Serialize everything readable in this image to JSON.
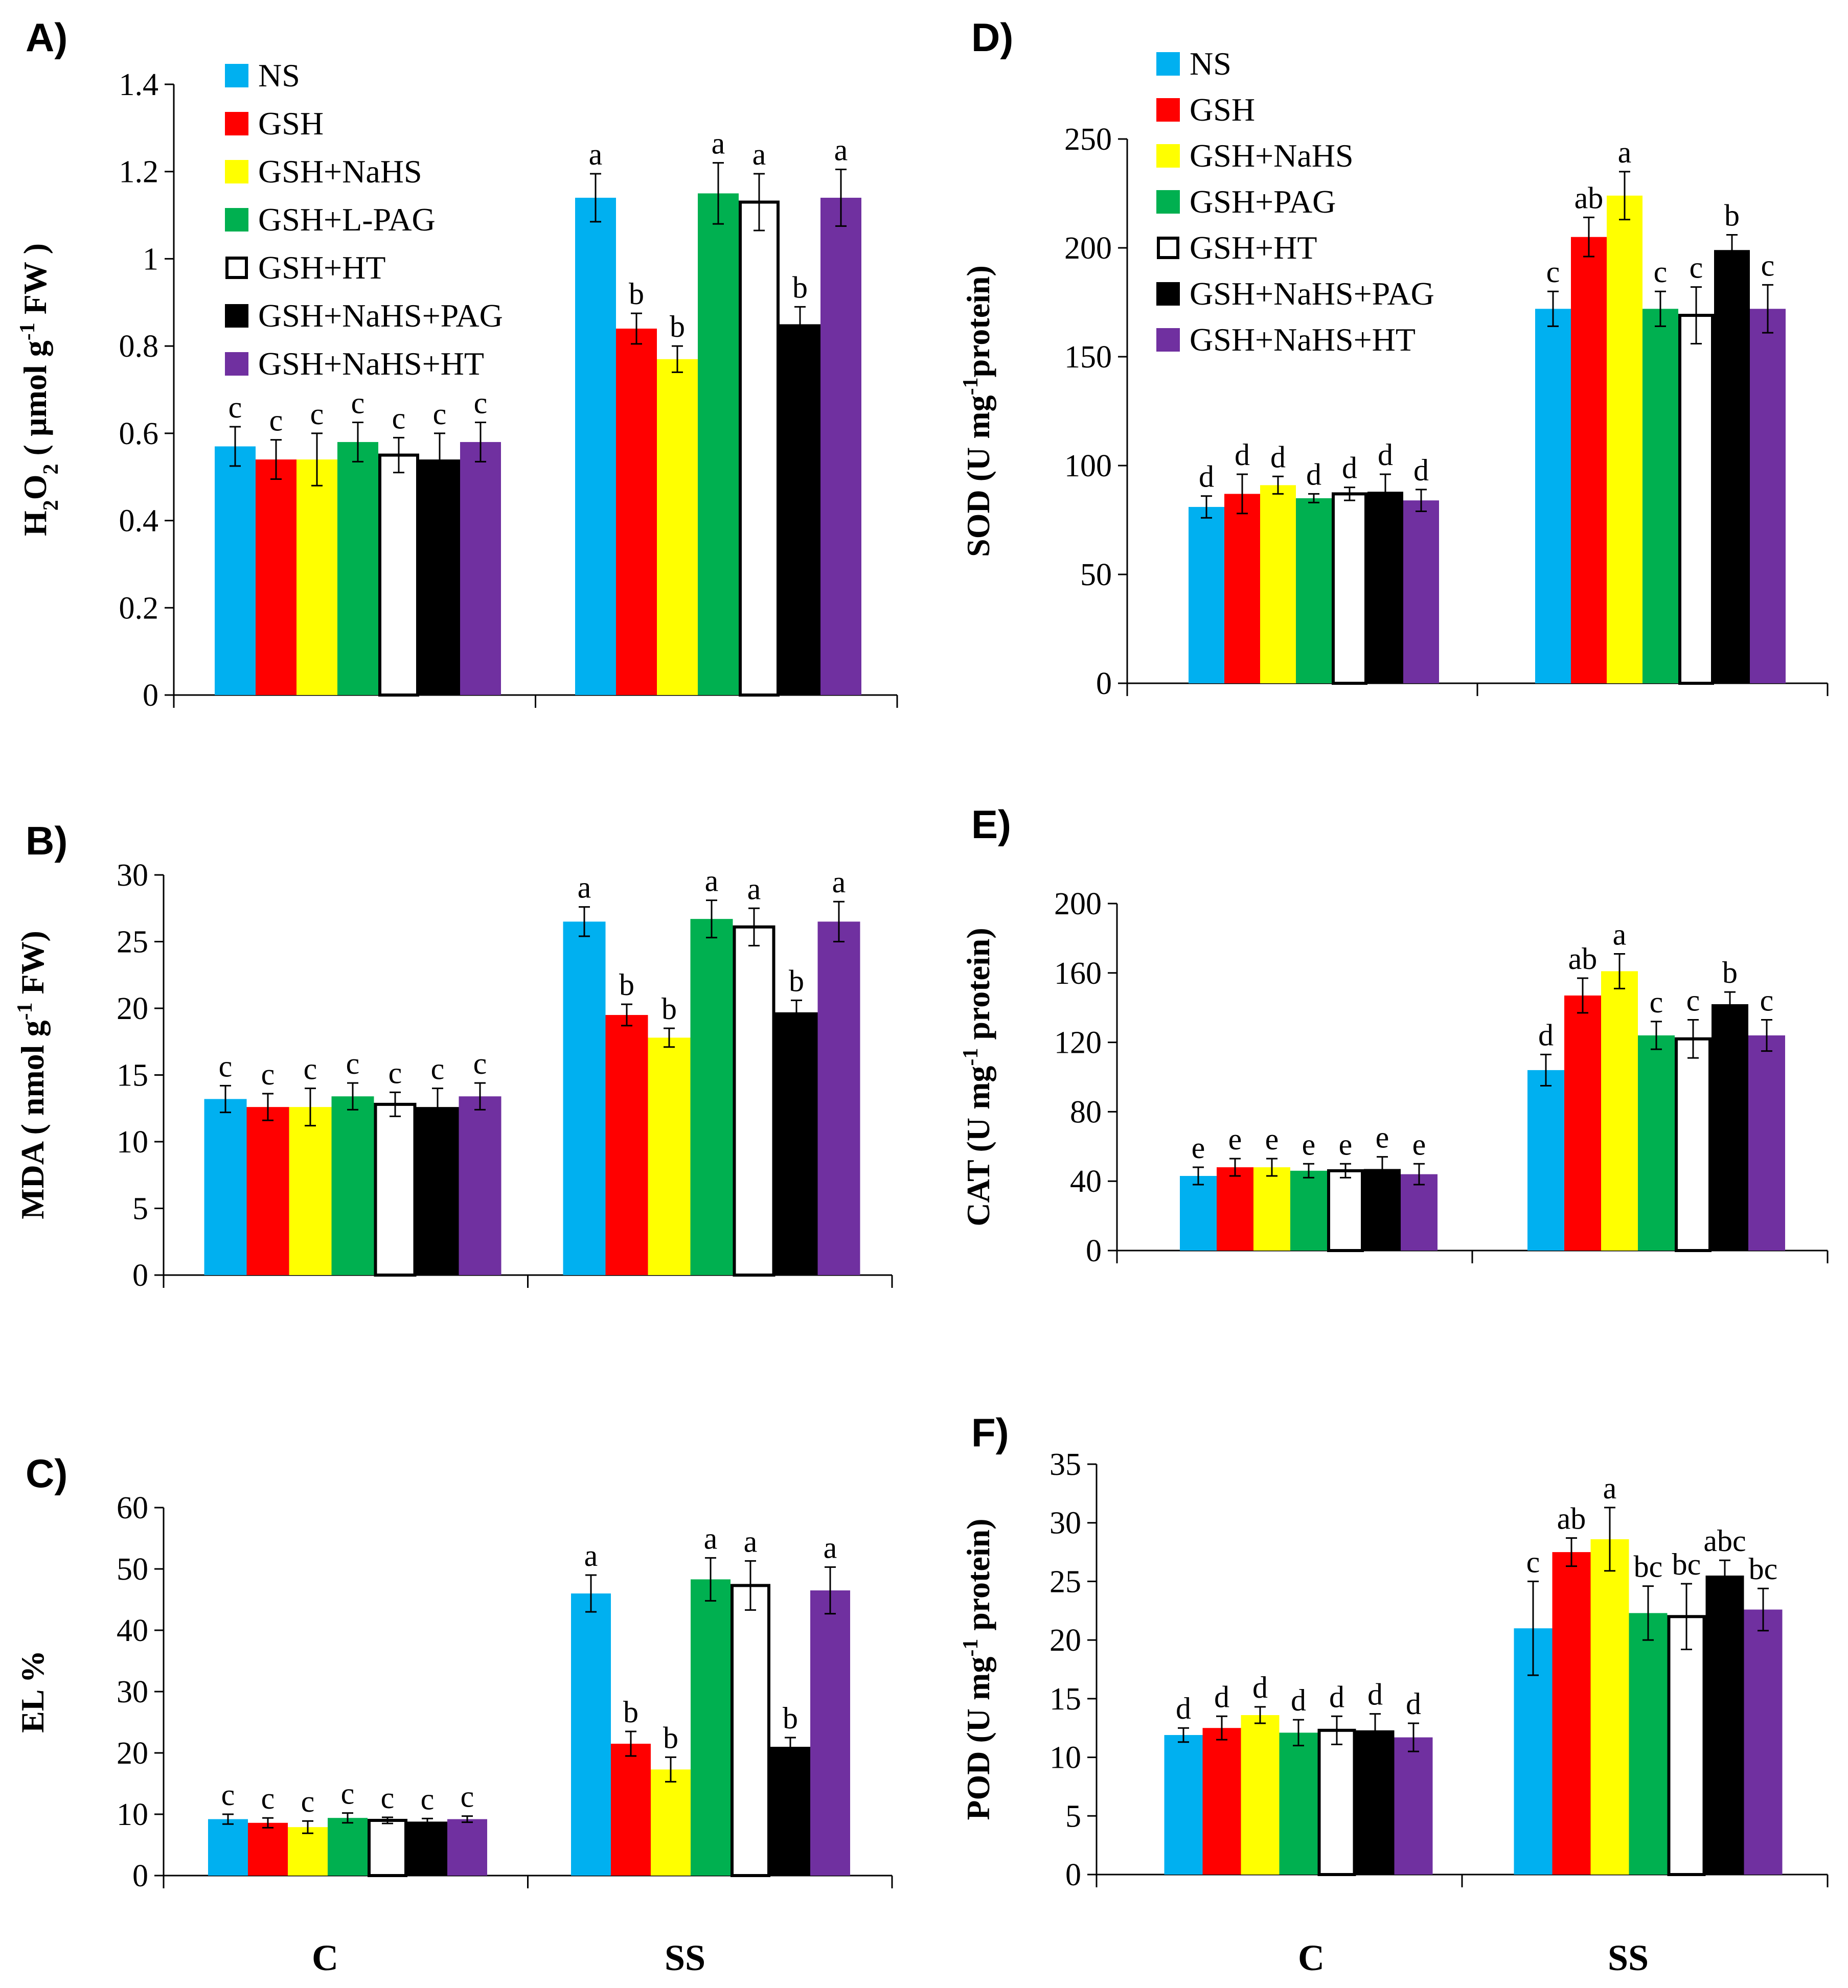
{
  "colors": {
    "NS": "#00b0f0",
    "GSH": "#ff0000",
    "GSH+NaHS": "#ffff00",
    "GSH+L-PAG": "#00b050",
    "GSH+PAG": "#00b050",
    "GSH+HT": "#ffffff",
    "GSH+NaHS+PAG": "#000000",
    "GSH+NaHS+HT": "#7030a0"
  },
  "bottom_labels": [
    "C",
    "SS"
  ],
  "chart_data": [
    {
      "id": "A",
      "panel_label": "A)",
      "type": "bar",
      "ylabel": [
        "H",
        "2",
        "O",
        "2",
        " ( µmol g",
        "-1",
        " FW )"
      ],
      "ylim": [
        0,
        1.4
      ],
      "yticks": [
        "0",
        "0.2",
        "0.4",
        "0.6",
        "0.8",
        "1",
        "1.2",
        "1.4"
      ],
      "categories": [
        "C",
        "SS"
      ],
      "legend": [
        "NS",
        "GSH",
        "GSH+NaHS",
        "GSH+L-PAG",
        "GSH+HT",
        "GSH+NaHS+PAG",
        "GSH+NaHS+HT"
      ],
      "series": [
        {
          "name": "NS",
          "values": [
            0.57,
            1.14
          ],
          "errors": [
            0.045,
            0.055
          ],
          "letters": [
            "c",
            "a"
          ]
        },
        {
          "name": "GSH",
          "values": [
            0.54,
            0.84
          ],
          "errors": [
            0.045,
            0.035
          ],
          "letters": [
            "c",
            "b"
          ]
        },
        {
          "name": "GSH+NaHS",
          "values": [
            0.54,
            0.77
          ],
          "errors": [
            0.06,
            0.03
          ],
          "letters": [
            "c",
            "b"
          ]
        },
        {
          "name": "GSH+L-PAG",
          "values": [
            0.58,
            1.15
          ],
          "errors": [
            0.045,
            0.07
          ],
          "letters": [
            "c",
            "a"
          ]
        },
        {
          "name": "GSH+HT",
          "values": [
            0.55,
            1.13
          ],
          "errors": [
            0.04,
            0.065
          ],
          "letters": [
            "c",
            "a"
          ]
        },
        {
          "name": "GSH+NaHS+PAG",
          "values": [
            0.54,
            0.85
          ],
          "errors": [
            0.06,
            0.04
          ],
          "letters": [
            "c",
            "b"
          ]
        },
        {
          "name": "GSH+NaHS+HT",
          "values": [
            0.58,
            1.14
          ],
          "errors": [
            0.045,
            0.065
          ],
          "letters": [
            "c",
            "a"
          ]
        }
      ]
    },
    {
      "id": "B",
      "panel_label": "B)",
      "type": "bar",
      "ylabel": [
        "MDA ( nmol g",
        "-1",
        " FW)"
      ],
      "ylim": [
        0,
        30
      ],
      "yticks": [
        "0",
        "5",
        "10",
        "15",
        "20",
        "25",
        "30"
      ],
      "categories": [
        "C",
        "SS"
      ],
      "series": [
        {
          "name": "NS",
          "values": [
            13.2,
            26.5
          ],
          "errors": [
            1.0,
            1.1
          ],
          "letters": [
            "c",
            "a"
          ]
        },
        {
          "name": "GSH",
          "values": [
            12.6,
            19.5
          ],
          "errors": [
            1.0,
            0.8
          ],
          "letters": [
            "c",
            "b"
          ]
        },
        {
          "name": "GSH+NaHS",
          "values": [
            12.6,
            17.8
          ],
          "errors": [
            1.4,
            0.7
          ],
          "letters": [
            "c",
            "b"
          ]
        },
        {
          "name": "GSH+L-PAG",
          "values": [
            13.4,
            26.7
          ],
          "errors": [
            1.0,
            1.4
          ],
          "letters": [
            "c",
            "a"
          ]
        },
        {
          "name": "GSH+HT",
          "values": [
            12.8,
            26.1
          ],
          "errors": [
            0.9,
            1.4
          ],
          "letters": [
            "c",
            "a"
          ]
        },
        {
          "name": "GSH+NaHS+PAG",
          "values": [
            12.6,
            19.7
          ],
          "errors": [
            1.4,
            0.9
          ],
          "letters": [
            "c",
            "b"
          ]
        },
        {
          "name": "GSH+NaHS+HT",
          "values": [
            13.4,
            26.5
          ],
          "errors": [
            1.0,
            1.5
          ],
          "letters": [
            "c",
            "a"
          ]
        }
      ]
    },
    {
      "id": "C",
      "panel_label": "C)",
      "type": "bar",
      "ylabel": [
        "EL %"
      ],
      "ylim": [
        0,
        60
      ],
      "yticks": [
        "0",
        "10",
        "20",
        "30",
        "40",
        "50",
        "60"
      ],
      "categories": [
        "C",
        "SS"
      ],
      "series": [
        {
          "name": "NS",
          "values": [
            9.2,
            46.0
          ],
          "errors": [
            0.8,
            3.0
          ],
          "letters": [
            "c",
            "a"
          ]
        },
        {
          "name": "GSH",
          "values": [
            8.6,
            21.5
          ],
          "errors": [
            0.8,
            2.0
          ],
          "letters": [
            "c",
            "b"
          ]
        },
        {
          "name": "GSH+NaHS",
          "values": [
            7.9,
            17.3
          ],
          "errors": [
            1.0,
            2.0
          ],
          "letters": [
            "c",
            "b"
          ]
        },
        {
          "name": "GSH+L-PAG",
          "values": [
            9.4,
            48.3
          ],
          "errors": [
            0.8,
            3.5
          ],
          "letters": [
            "c",
            "a"
          ]
        },
        {
          "name": "GSH+HT",
          "values": [
            9.0,
            47.3
          ],
          "errors": [
            0.5,
            4.0
          ],
          "letters": [
            "c",
            "a"
          ]
        },
        {
          "name": "GSH+NaHS+PAG",
          "values": [
            8.8,
            21.0
          ],
          "errors": [
            0.5,
            1.5
          ],
          "letters": [
            "c",
            "b"
          ]
        },
        {
          "name": "GSH+NaHS+HT",
          "values": [
            9.2,
            46.5
          ],
          "errors": [
            0.5,
            3.8
          ],
          "letters": [
            "c",
            "a"
          ]
        }
      ]
    },
    {
      "id": "D",
      "panel_label": "D)",
      "type": "bar",
      "ylabel": [
        "SOD (U mg",
        "-1",
        "protein)"
      ],
      "ylim": [
        0,
        250
      ],
      "yticks": [
        "0",
        "50",
        "100",
        "150",
        "200",
        "250"
      ],
      "categories": [
        "C",
        "SS"
      ],
      "legend": [
        "NS",
        "GSH",
        "GSH+NaHS",
        "GSH+PAG",
        "GSH+HT",
        "GSH+NaHS+PAG",
        "GSH+NaHS+HT"
      ],
      "series": [
        {
          "name": "NS",
          "values": [
            81,
            172
          ],
          "errors": [
            5,
            8
          ],
          "letters": [
            "d",
            "c"
          ]
        },
        {
          "name": "GSH",
          "values": [
            87,
            205
          ],
          "errors": [
            9,
            9
          ],
          "letters": [
            "d",
            "ab"
          ]
        },
        {
          "name": "GSH+NaHS",
          "values": [
            91,
            224
          ],
          "errors": [
            4,
            11
          ],
          "letters": [
            "d",
            "a"
          ]
        },
        {
          "name": "GSH+PAG",
          "values": [
            85,
            172
          ],
          "errors": [
            2,
            8
          ],
          "letters": [
            "d",
            "c"
          ]
        },
        {
          "name": "GSH+HT",
          "values": [
            87,
            169
          ],
          "errors": [
            3,
            13
          ],
          "letters": [
            "d",
            "c"
          ]
        },
        {
          "name": "GSH+NaHS+PAG",
          "values": [
            88,
            199
          ],
          "errors": [
            8,
            7
          ],
          "letters": [
            "d",
            "b"
          ]
        },
        {
          "name": "GSH+NaHS+HT",
          "values": [
            84,
            172
          ],
          "errors": [
            5,
            11
          ],
          "letters": [
            "d",
            "c"
          ]
        }
      ]
    },
    {
      "id": "E",
      "panel_label": "E)",
      "type": "bar",
      "ylabel": [
        "CAT (U mg",
        "-1",
        " protein)"
      ],
      "ylim": [
        0,
        200
      ],
      "yticks": [
        "0",
        "40",
        "80",
        "120",
        "160",
        "200"
      ],
      "categories": [
        "C",
        "SS"
      ],
      "series": [
        {
          "name": "NS",
          "values": [
            43,
            104
          ],
          "errors": [
            5,
            9
          ],
          "letters": [
            "e",
            "d"
          ]
        },
        {
          "name": "GSH",
          "values": [
            48,
            147
          ],
          "errors": [
            5,
            10
          ],
          "letters": [
            "e",
            "ab"
          ]
        },
        {
          "name": "GSH+NaHS",
          "values": [
            48,
            161
          ],
          "errors": [
            5,
            10
          ],
          "letters": [
            "e",
            "a"
          ]
        },
        {
          "name": "GSH+PAG",
          "values": [
            46,
            124
          ],
          "errors": [
            4,
            8
          ],
          "letters": [
            "e",
            "c"
          ]
        },
        {
          "name": "GSH+HT",
          "values": [
            46,
            122
          ],
          "errors": [
            4,
            11
          ],
          "letters": [
            "e",
            "c"
          ]
        },
        {
          "name": "GSH+NaHS+PAG",
          "values": [
            47,
            142
          ],
          "errors": [
            7,
            7
          ],
          "letters": [
            "e",
            "b"
          ]
        },
        {
          "name": "GSH+NaHS+HT",
          "values": [
            44,
            124
          ],
          "errors": [
            6,
            9
          ],
          "letters": [
            "e",
            "c"
          ]
        }
      ]
    },
    {
      "id": "F",
      "panel_label": "F)",
      "type": "bar",
      "ylabel": [
        "POD (U mg",
        "-1",
        " protein)"
      ],
      "ylim": [
        0,
        35
      ],
      "yticks": [
        "0",
        "5",
        "10",
        "15",
        "20",
        "25",
        "30",
        "35"
      ],
      "categories": [
        "C",
        "SS"
      ],
      "series": [
        {
          "name": "NS",
          "values": [
            11.9,
            21.0
          ],
          "errors": [
            0.6,
            4.0
          ],
          "letters": [
            "d",
            "c"
          ]
        },
        {
          "name": "GSH",
          "values": [
            12.5,
            27.5
          ],
          "errors": [
            1.0,
            1.2
          ],
          "letters": [
            "d",
            "ab"
          ]
        },
        {
          "name": "GSH+NaHS",
          "values": [
            13.6,
            28.6
          ],
          "errors": [
            0.7,
            2.7
          ],
          "letters": [
            "d",
            "a"
          ]
        },
        {
          "name": "GSH+PAG",
          "values": [
            12.1,
            22.3
          ],
          "errors": [
            1.1,
            2.3
          ],
          "letters": [
            "d",
            "bc"
          ]
        },
        {
          "name": "GSH+HT",
          "values": [
            12.3,
            22.0
          ],
          "errors": [
            1.2,
            2.8
          ],
          "letters": [
            "d",
            "bc"
          ]
        },
        {
          "name": "GSH+NaHS+PAG",
          "values": [
            12.3,
            25.5
          ],
          "errors": [
            1.4,
            1.3
          ],
          "letters": [
            "d",
            "abc"
          ]
        },
        {
          "name": "GSH+NaHS+HT",
          "values": [
            11.7,
            22.6
          ],
          "errors": [
            1.2,
            1.8
          ],
          "letters": [
            "d",
            "bc"
          ]
        }
      ]
    }
  ]
}
